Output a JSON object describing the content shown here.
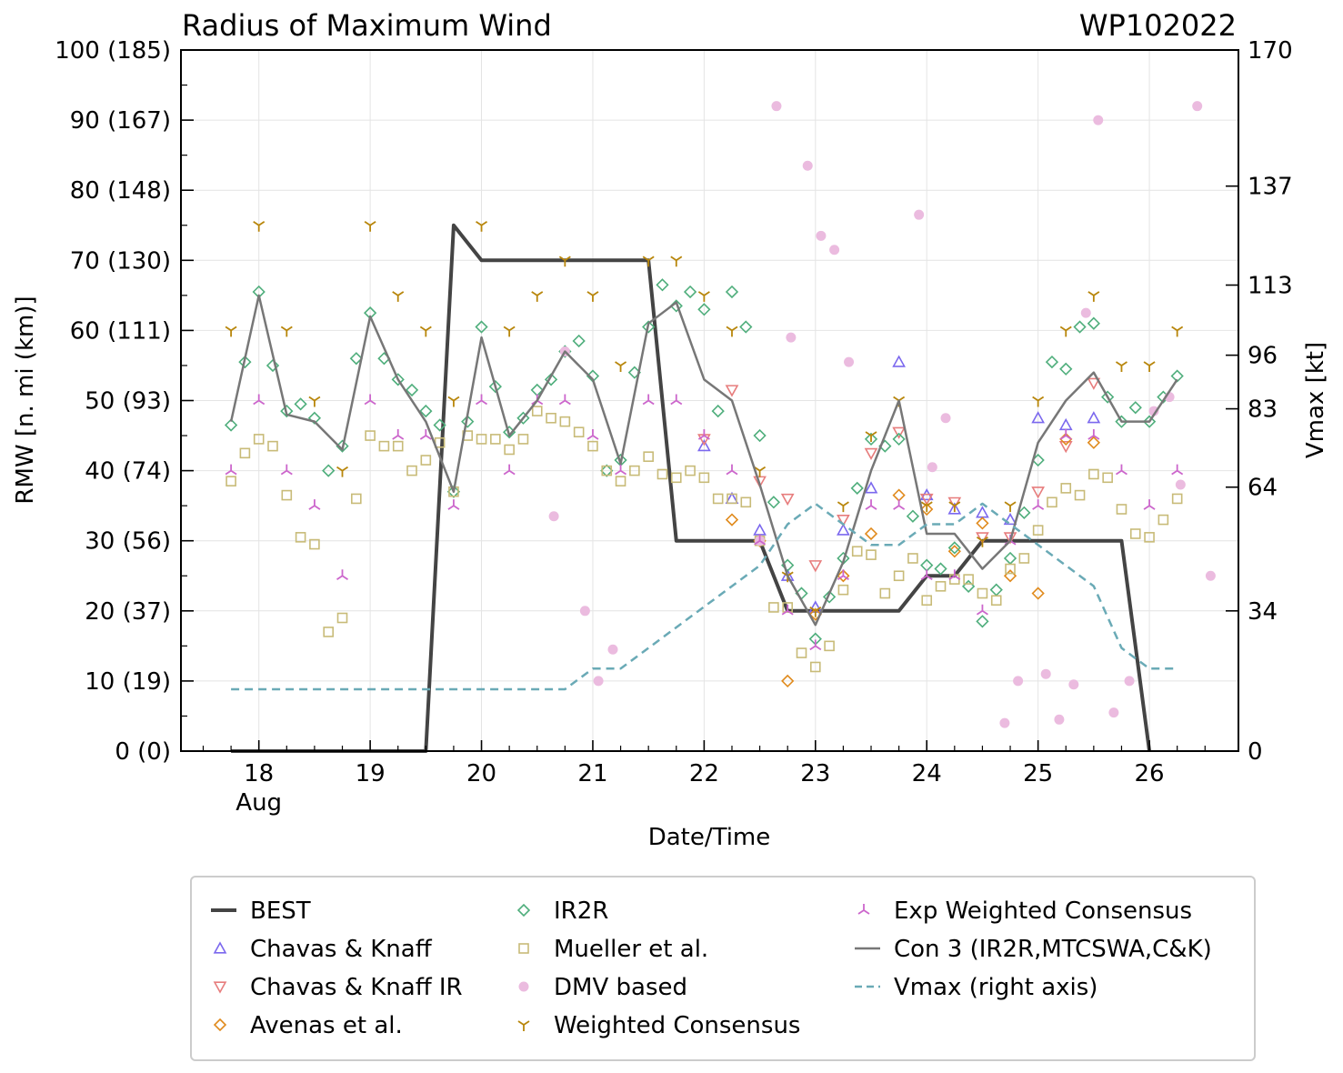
{
  "chart_data": {
    "type": "scatter",
    "title": "Radius of Maximum Wind",
    "storm_id": "WP102022",
    "xlabel": "Date/Time",
    "ylabel": "RMW [n. mi (km)]",
    "y2label": "Vmax [kt]",
    "xlim": [
      17.3,
      26.8
    ],
    "ylim": [
      0,
      100
    ],
    "x_ticks": [
      {
        "value": 18,
        "label": "18"
      },
      {
        "value": 19,
        "label": "19"
      },
      {
        "value": 20,
        "label": "20"
      },
      {
        "value": 21,
        "label": "21"
      },
      {
        "value": 22,
        "label": "22"
      },
      {
        "value": 23,
        "label": "23"
      },
      {
        "value": 24,
        "label": "24"
      },
      {
        "value": 25,
        "label": "25"
      },
      {
        "value": 26,
        "label": "26"
      }
    ],
    "x_sublabel": "Aug",
    "y_ticks": [
      {
        "value": 0,
        "label": "0 (0)"
      },
      {
        "value": 10,
        "label": "10 (19)"
      },
      {
        "value": 20,
        "label": "20 (37)"
      },
      {
        "value": 30,
        "label": "30 (56)"
      },
      {
        "value": 40,
        "label": "40 (74)"
      },
      {
        "value": 50,
        "label": "50 (93)"
      },
      {
        "value": 60,
        "label": "60 (111)"
      },
      {
        "value": 70,
        "label": "70 (130)"
      },
      {
        "value": 80,
        "label": "80 (148)"
      },
      {
        "value": 90,
        "label": "90 (167)"
      },
      {
        "value": 100,
        "label": "100 (185)"
      }
    ],
    "y2_ticks": [
      {
        "value": 0,
        "label": "0"
      },
      {
        "value": 34,
        "label": "34"
      },
      {
        "value": 64,
        "label": "64"
      },
      {
        "value": 83,
        "label": "83"
      },
      {
        "value": 96,
        "label": "96"
      },
      {
        "value": 113,
        "label": "113"
      },
      {
        "value": 137,
        "label": "137"
      },
      {
        "value": 170,
        "label": "170"
      }
    ],
    "y2_max": 170,
    "grid": true,
    "legend_position": "bottom",
    "series": [
      {
        "name": "BEST",
        "kind": "line",
        "color": "#444444",
        "width": 4,
        "x": [
          17.75,
          19.5,
          19.75,
          20,
          21.5,
          21.75,
          22.5,
          22.75,
          23.75,
          24.0,
          24.25,
          24.5,
          25.75,
          26.0
        ],
        "y": [
          0,
          0,
          75,
          70,
          70,
          30,
          30,
          20,
          20,
          25,
          25,
          30,
          30,
          0
        ]
      },
      {
        "name": "Chavas & Knaff",
        "kind": "scatter",
        "marker": "triangle-up",
        "color": "#7b68ee",
        "x": [
          22.0,
          22.25,
          22.5,
          22.75,
          23.0,
          23.25,
          23.5,
          23.75,
          24.0,
          24.25,
          24.5,
          24.75,
          25.0,
          25.25,
          25.5
        ],
        "y": [
          43.5,
          36,
          31.5,
          25,
          20.5,
          31.5,
          37.5,
          55.5,
          36.5,
          34.5,
          34,
          33,
          47.5,
          46.5,
          47.5
        ]
      },
      {
        "name": "Chavas & Knaff IR",
        "kind": "scatter",
        "marker": "triangle-down",
        "color": "#e77d7d",
        "x": [
          22.0,
          22.25,
          22.5,
          22.75,
          23.0,
          23.25,
          23.5,
          23.75,
          24.0,
          24.25,
          24.5,
          24.75,
          25.0,
          25.25,
          25.5
        ],
        "y": [
          44.5,
          51.5,
          38.5,
          36,
          26.5,
          33,
          42.5,
          45.5,
          36,
          35.5,
          30.5,
          30.5,
          37,
          43.5,
          52.5
        ]
      },
      {
        "name": "Avenas et al.",
        "kind": "scatter",
        "marker": "diamond",
        "color": "#e08a1c",
        "x": [
          22.25,
          22.5,
          22.75,
          23.0,
          23.25,
          23.5,
          23.75,
          24.0,
          24.25,
          24.5,
          24.75,
          25.0,
          25.25,
          25.5
        ],
        "y": [
          33,
          30,
          10,
          19.5,
          25,
          31,
          36.5,
          34.5,
          28.5,
          32.5,
          25,
          22.5,
          44.5,
          44
        ]
      },
      {
        "name": "IR2R",
        "kind": "scatter",
        "marker": "diamond",
        "color": "#4fae7c",
        "x": [
          17.75,
          17.875,
          18.0,
          18.125,
          18.25,
          18.375,
          18.5,
          18.625,
          18.75,
          18.875,
          19.0,
          19.125,
          19.25,
          19.375,
          19.5,
          19.625,
          19.75,
          19.875,
          20.0,
          20.125,
          20.25,
          20.375,
          20.5,
          20.625,
          20.75,
          20.875,
          21.0,
          21.125,
          21.25,
          21.375,
          21.5,
          21.625,
          21.75,
          21.875,
          22.0,
          22.125,
          22.25,
          22.375,
          22.5,
          22.625,
          22.75,
          22.875,
          23.0,
          23.125,
          23.25,
          23.375,
          23.5,
          23.625,
          23.75,
          23.875,
          24.0,
          24.125,
          24.25,
          24.375,
          24.5,
          24.625,
          24.75,
          24.875,
          25.0,
          25.125,
          25.25,
          25.375,
          25.5,
          25.625,
          25.75,
          25.875,
          26.0,
          26.125,
          26.25
        ],
        "y": [
          46.5,
          55.5,
          65.5,
          55,
          48.5,
          49.5,
          47.5,
          40,
          43.5,
          56,
          62.5,
          56,
          53,
          51.5,
          48.5,
          46.5,
          37,
          47,
          60.5,
          52,
          45.5,
          47.5,
          51.5,
          53,
          57,
          58.5,
          53.5,
          40,
          41.5,
          54,
          60.5,
          66.5,
          63.5,
          65.5,
          63,
          48.5,
          65.5,
          60.5,
          45,
          35.5,
          26.5,
          22.5,
          16,
          22,
          27.5,
          37.5,
          44.5,
          43.5,
          44.5,
          33.5,
          26.5,
          26,
          29,
          23.5,
          18.5,
          23,
          27.5,
          34,
          41.5,
          55.5,
          54.5,
          60.5,
          61,
          50.5,
          47,
          49,
          47,
          50.5,
          53.5
        ]
      },
      {
        "name": "Mueller et al.",
        "kind": "scatter",
        "marker": "square",
        "color": "#c8bb78",
        "x": [
          17.75,
          17.875,
          18.0,
          18.125,
          18.25,
          18.375,
          18.5,
          18.625,
          18.75,
          18.875,
          19.0,
          19.125,
          19.25,
          19.375,
          19.5,
          19.625,
          19.75,
          19.875,
          20.0,
          20.125,
          20.25,
          20.375,
          20.5,
          20.625,
          20.75,
          20.875,
          21.0,
          21.125,
          21.25,
          21.375,
          21.5,
          21.625,
          21.75,
          21.875,
          22.0,
          22.125,
          22.25,
          22.375,
          22.5,
          22.625,
          22.75,
          22.875,
          23.0,
          23.125,
          23.25,
          23.375,
          23.5,
          23.625,
          23.75,
          23.875,
          24.0,
          24.125,
          24.25,
          24.375,
          24.5,
          24.625,
          24.75,
          24.875,
          25.0,
          25.125,
          25.25,
          25.375,
          25.5,
          25.625,
          25.75,
          25.875,
          26.0,
          26.125,
          26.25
        ],
        "y": [
          38.5,
          42.5,
          44.5,
          43.5,
          36.5,
          30.5,
          29.5,
          17,
          19,
          36,
          45,
          43.5,
          43.5,
          40,
          41.5,
          44,
          37,
          45,
          44.5,
          44.5,
          43,
          44.5,
          48.5,
          47.5,
          47,
          45.5,
          43.5,
          40,
          38.5,
          40,
          42,
          39.5,
          39,
          40,
          39,
          36,
          36,
          35.5,
          30,
          20.5,
          20.5,
          14,
          12,
          15,
          23,
          28.5,
          28,
          22.5,
          25,
          27.5,
          21.5,
          23.5,
          24.5,
          24.5,
          22.5,
          21.5,
          26,
          27.5,
          31.5,
          35.5,
          37.5,
          36.5,
          39.5,
          39,
          34.5,
          31,
          30.5,
          33,
          36
        ]
      },
      {
        "name": "DMV based",
        "kind": "scatter",
        "marker": "circle",
        "color": "#ebbbdf",
        "x": [
          20.65,
          20.75,
          20.93,
          21.05,
          21.18,
          22.5,
          22.65,
          22.78,
          22.93,
          23.05,
          23.17,
          23.3,
          23.93,
          24.05,
          24.17,
          24.7,
          24.82,
          25.07,
          25.19,
          25.32,
          25.43,
          25.54,
          25.68,
          25.82,
          26.04,
          26.18,
          26.28,
          26.43,
          26.55
        ],
        "y": [
          33.5,
          57,
          20,
          10,
          14.5,
          30,
          92,
          59,
          83.5,
          73.5,
          71.5,
          55.5,
          76.5,
          40.5,
          47.5,
          4,
          10,
          11,
          4.5,
          9.5,
          62.5,
          90,
          5.5,
          10,
          48.5,
          50.5,
          38,
          92,
          25
        ]
      },
      {
        "name": "Weighted Consensus",
        "kind": "scatter",
        "marker": "tri-down",
        "color": "#b8860b",
        "x": [
          17.75,
          18.0,
          18.25,
          18.5,
          18.75,
          19.0,
          19.25,
          19.5,
          19.75,
          20.0,
          20.25,
          20.5,
          20.75,
          21.0,
          21.25,
          21.5,
          21.75,
          22.0,
          22.25,
          22.5,
          22.75,
          23.0,
          23.25,
          23.5,
          23.75,
          24.0,
          24.25,
          24.5,
          24.75,
          25.0,
          25.25,
          25.5,
          25.75,
          26.0,
          26.25
        ],
        "y": [
          60,
          75,
          60,
          50,
          40,
          75,
          65,
          60,
          50,
          75,
          60,
          65,
          70,
          65,
          55,
          70,
          70,
          65,
          60,
          40,
          25,
          20,
          35,
          45,
          50,
          35,
          35,
          30,
          35,
          50,
          60,
          65,
          55,
          55,
          60
        ]
      },
      {
        "name": "Exp Weighted Consensus",
        "kind": "scatter",
        "marker": "tri-up",
        "color": "#cc66cc",
        "x": [
          17.75,
          18.0,
          18.25,
          18.5,
          18.75,
          19.0,
          19.25,
          19.5,
          19.75,
          20.0,
          20.25,
          20.5,
          20.75,
          21.0,
          21.25,
          21.5,
          21.75,
          22.0,
          22.25,
          22.5,
          22.75,
          23.0,
          23.25,
          23.5,
          23.75,
          24.0,
          24.25,
          24.5,
          24.75,
          25.0,
          25.25,
          25.5,
          25.75,
          26.0,
          26.25
        ],
        "y": [
          40,
          50,
          40,
          35,
          25,
          50,
          45,
          45,
          35,
          50,
          40,
          50,
          50,
          45,
          40,
          50,
          50,
          45,
          40,
          30,
          20,
          15,
          25,
          35,
          35,
          25,
          25,
          20,
          30,
          35,
          45,
          45,
          40,
          35,
          40
        ]
      },
      {
        "name": "Con 3 (IR2R,MTCSWA,C&K)",
        "kind": "line",
        "color": "#777777",
        "width": 2.5,
        "x": [
          17.75,
          18.0,
          18.25,
          18.5,
          18.75,
          19.0,
          19.25,
          19.5,
          19.75,
          20.0,
          20.25,
          20.5,
          20.75,
          21.0,
          21.25,
          21.5,
          21.75,
          22.0,
          22.25,
          22.5,
          22.75,
          23.0,
          23.25,
          23.5,
          23.75,
          24.0,
          24.25,
          24.5,
          24.75,
          25.0,
          25.25,
          25.5,
          25.75,
          26.0,
          26.25
        ],
        "y": [
          47,
          65,
          48,
          47,
          43,
          62,
          53,
          47,
          37,
          59,
          45,
          50,
          57,
          53,
          41,
          61,
          64,
          53,
          50,
          38,
          25,
          18,
          27,
          40,
          50,
          31,
          31,
          26,
          30,
          44,
          50,
          54,
          47,
          47,
          53
        ]
      },
      {
        "name": "Vmax (right axis)",
        "kind": "line",
        "dash": true,
        "axis": "right",
        "color": "#6aaab6",
        "width": 2.5,
        "x": [
          17.75,
          20.75,
          21.0,
          21.25,
          21.5,
          22.0,
          22.25,
          22.5,
          22.75,
          23.0,
          23.25,
          23.5,
          23.75,
          24.0,
          24.25,
          24.5,
          24.75,
          25.0,
          25.5,
          25.75,
          26.0,
          26.25
        ],
        "y": [
          15,
          15,
          20,
          20,
          25,
          35,
          40,
          45,
          55,
          60,
          55,
          50,
          50,
          55,
          55,
          60,
          55,
          50,
          40,
          25,
          20,
          20
        ]
      }
    ]
  },
  "legend": {
    "items": [
      {
        "label": "BEST"
      },
      {
        "label": "Chavas & Knaff"
      },
      {
        "label": "Chavas & Knaff IR"
      },
      {
        "label": "Avenas et al."
      },
      {
        "label": "IR2R"
      },
      {
        "label": "Mueller et al."
      },
      {
        "label": "DMV based"
      },
      {
        "label": "Weighted Consensus"
      },
      {
        "label": "Exp Weighted Consensus"
      },
      {
        "label": "Con 3 (IR2R,MTCSWA,C&K)"
      },
      {
        "label": "Vmax (right axis)"
      }
    ]
  }
}
